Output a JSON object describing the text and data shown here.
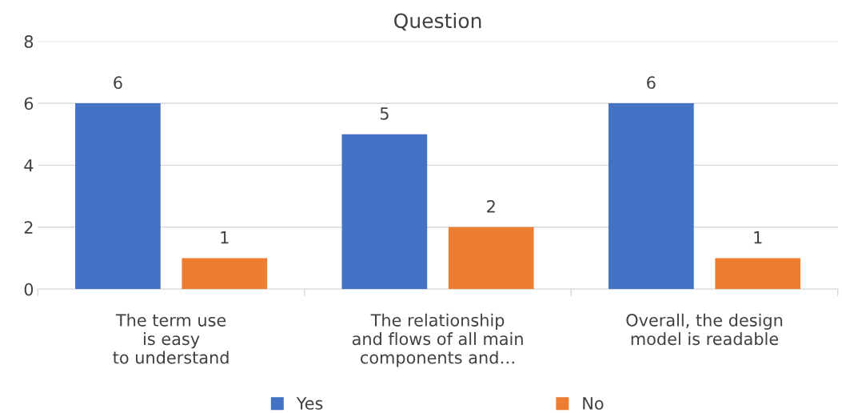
{
  "chart_data": {
    "type": "bar",
    "title": "Question",
    "categories": [
      "The term use\nis easy\nto understand",
      "The relationship\nand flows of all main\ncomponents and…",
      "Overall, the design\nmodel is readable"
    ],
    "series": [
      {
        "name": "Yes",
        "color": "#4472c4",
        "values": [
          6,
          5,
          6
        ]
      },
      {
        "name": "No",
        "color": "#ed7d31",
        "values": [
          1,
          2,
          1
        ]
      }
    ],
    "ylim": [
      0,
      8
    ],
    "yticks": [
      0,
      2,
      4,
      6,
      8
    ],
    "grid": "y",
    "legend": "bottom",
    "data_labels": true
  }
}
